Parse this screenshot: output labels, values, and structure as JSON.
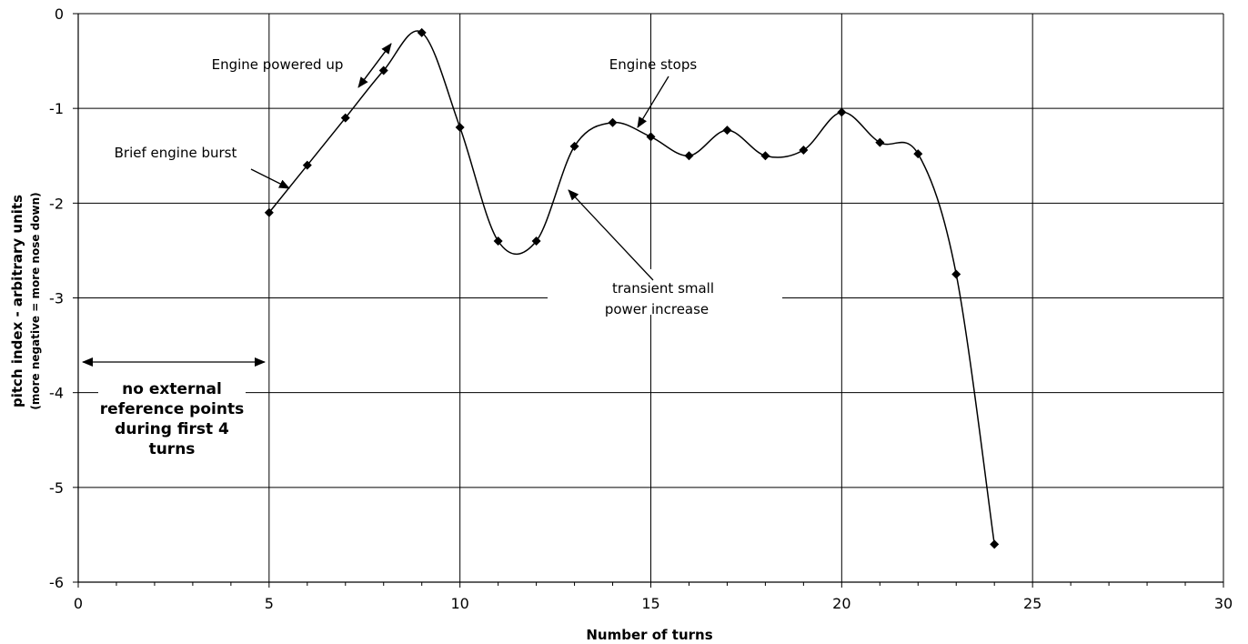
{
  "chart_data": {
    "type": "line",
    "xlabel": "Number of turns",
    "ylabel": "pitch index - arbitrary units",
    "ylabel_sub": "(more negative = more nose down)",
    "xlim": [
      0,
      30
    ],
    "ylim": [
      -6,
      0
    ],
    "x_ticks": [
      "0",
      "5",
      "10",
      "15",
      "20",
      "25",
      "30"
    ],
    "y_ticks": [
      "0",
      "-1",
      "-2",
      "-3",
      "-4",
      "-5",
      "-6"
    ],
    "grid": true,
    "legend": "none",
    "series": [
      {
        "x": [
          5,
          6,
          7,
          8,
          9,
          10,
          11,
          12,
          13,
          14,
          15,
          16,
          17,
          18,
          19,
          20,
          21,
          22,
          23,
          24
        ],
        "y": [
          -2.1,
          -1.6,
          -1.1,
          -0.6,
          -0.2,
          -1.2,
          -2.4,
          -2.4,
          -1.4,
          -1.15,
          -1.3,
          -1.5,
          -1.23,
          -1.5,
          -1.44,
          -1.04,
          -1.36,
          -1.48,
          -2.75,
          -5.6
        ]
      }
    ],
    "annotations": {
      "engine_powered_up": "Engine powered up",
      "engine_stops": "Engine stops",
      "brief_engine_burst": "Brief engine burst",
      "transient_line1": "transient small",
      "transient_line2": "power increase",
      "no_ref_line1": "no external",
      "no_ref_line2": "reference points",
      "no_ref_line3": "during first 4",
      "no_ref_line4": "turns"
    }
  }
}
